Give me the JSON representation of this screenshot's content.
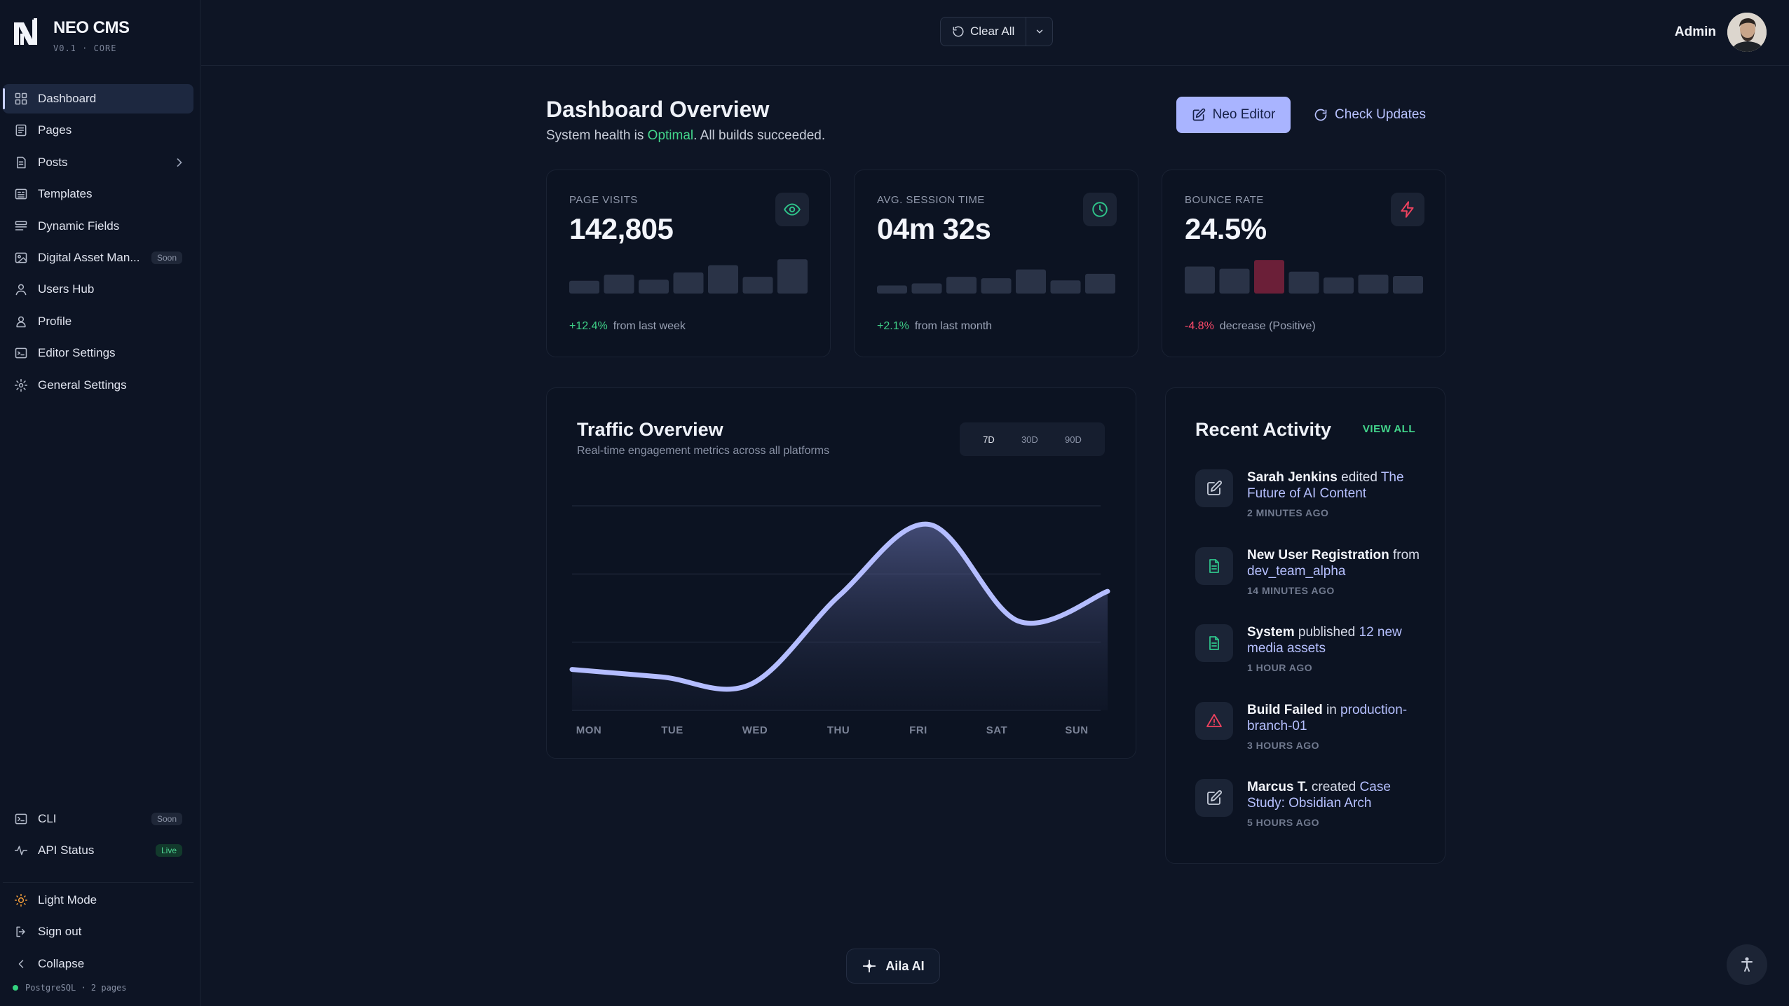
{
  "brand": {
    "name": "NEO CMS",
    "version": "V0.1 · CORE"
  },
  "sidebar": {
    "items": [
      {
        "label": "Dashboard",
        "icon": "grid-icon",
        "active": true
      },
      {
        "label": "Pages",
        "icon": "page-icon"
      },
      {
        "label": "Posts",
        "icon": "posts-icon",
        "chevron": true
      },
      {
        "label": "Templates",
        "icon": "templates-icon"
      },
      {
        "label": "Dynamic Fields",
        "icon": "fields-icon"
      },
      {
        "label": "Digital Asset Man...",
        "icon": "image-icon",
        "badge": "Soon"
      },
      {
        "label": "Users Hub",
        "icon": "user-icon"
      },
      {
        "label": "Profile",
        "icon": "profile-icon"
      },
      {
        "label": "Editor Settings",
        "icon": "editor-icon"
      },
      {
        "label": "General Settings",
        "icon": "gear-icon"
      }
    ],
    "bottom": [
      {
        "label": "CLI",
        "icon": "terminal-icon",
        "badge": "Soon"
      },
      {
        "label": "API Status",
        "icon": "pulse-icon",
        "badge": "Live"
      }
    ],
    "footer": [
      {
        "label": "Light Mode",
        "icon": "sun-icon"
      },
      {
        "label": "Sign out",
        "icon": "signout-icon"
      },
      {
        "label": "Collapse",
        "icon": "chevron-left-icon"
      }
    ],
    "db_status": "PostgreSQL · 2 pages"
  },
  "topbar": {
    "clear_label": "Clear All",
    "user_name": "Admin"
  },
  "header": {
    "title": "Dashboard Overview",
    "subtitle_prefix": "System health is ",
    "subtitle_status": "Optimal",
    "subtitle_suffix": ". All builds succeeded.",
    "neo_editor_label": "Neo Editor",
    "check_updates_label": "Check Updates"
  },
  "stats": [
    {
      "label": "PAGE VISITS",
      "value": "142,805",
      "change": "+12.4%",
      "note": "from last week",
      "positive": true,
      "icon": "eye-icon",
      "icon_color": "#2fc38a",
      "bars": [
        0.35,
        0.52,
        0.38,
        0.58,
        0.78,
        0.46,
        0.94
      ],
      "highlight": -1
    },
    {
      "label": "AVG. SESSION TIME",
      "value": "04m 32s",
      "change": "+2.1%",
      "note": "from last month",
      "positive": true,
      "icon": "clock-icon",
      "icon_color": "#2fc38a",
      "bars": [
        0.22,
        0.28,
        0.46,
        0.42,
        0.66,
        0.36,
        0.54
      ],
      "highlight": -1
    },
    {
      "label": "BOUNCE RATE",
      "value": "24.5%",
      "change": "-4.8%",
      "note": "decrease (Positive)",
      "positive": false,
      "icon": "bolt-icon",
      "icon_color": "#f0425f",
      "bars": [
        0.74,
        0.68,
        0.92,
        0.6,
        0.44,
        0.52,
        0.48
      ],
      "highlight": 2
    }
  ],
  "traffic": {
    "title": "Traffic Overview",
    "subtitle": "Real-time engagement metrics across all platforms",
    "ranges": [
      "7D",
      "30D",
      "90D"
    ],
    "selected_range": "7D"
  },
  "chart_data": {
    "type": "area",
    "categories": [
      "MON",
      "TUE",
      "WED",
      "THU",
      "FRI",
      "SAT",
      "SUN"
    ],
    "values": [
      22,
      18,
      14,
      62,
      100,
      48,
      64
    ],
    "ylim": [
      0,
      110
    ],
    "grid": true,
    "color": "#b4bdff"
  },
  "activity": {
    "title": "Recent Activity",
    "view_all": "VIEW ALL",
    "items": [
      {
        "icon": "edit-icon",
        "icon_color": "#c9cfdc",
        "bold": "Sarah Jenkins",
        "text": " edited ",
        "highlight": "The Future of AI Content",
        "time": "2 MINUTES AGO"
      },
      {
        "icon": "file-icon",
        "icon_color": "#2fc38a",
        "bold": "New User Registration",
        "text": " from ",
        "highlight": "dev_team_alpha",
        "time": "14 MINUTES AGO"
      },
      {
        "icon": "file-icon",
        "icon_color": "#2fc38a",
        "bold": "System",
        "text": " published ",
        "highlight": "12 new media assets",
        "time": "1 HOUR AGO"
      },
      {
        "icon": "warning-icon",
        "icon_color": "#f0425f",
        "bold": "Build Failed",
        "text": " in ",
        "highlight": "production-branch-01",
        "time": "3 HOURS AGO"
      },
      {
        "icon": "edit-icon",
        "icon_color": "#c9cfdc",
        "bold": "Marcus T.",
        "text": " created ",
        "highlight": "Case Study: Obsidian Arch",
        "time": "5 HOURS AGO"
      }
    ]
  },
  "floating": {
    "aila_label": "Aila AI"
  }
}
